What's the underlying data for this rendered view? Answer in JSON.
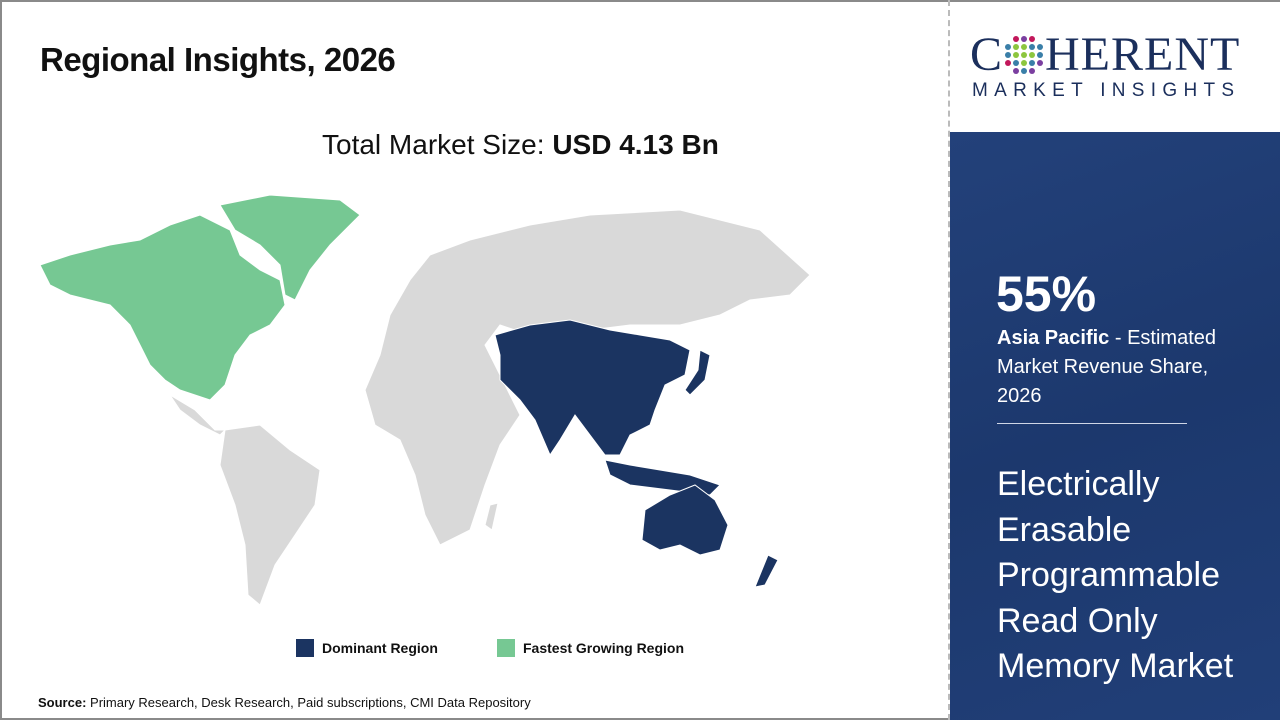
{
  "header": {
    "title": "Regional Insights, 2026",
    "total_label": "Total Market Size: ",
    "total_value": "USD 4.13 Bn"
  },
  "legend": [
    {
      "label": "Dominant Region",
      "color": "#1b3461"
    },
    {
      "label": "Fastest Growing Region",
      "color": "#76c893"
    }
  ],
  "map": {
    "land_color": "#d9d9d9",
    "dominant": "Asia Pacific",
    "fastest": "North America"
  },
  "source": {
    "label": "Source:",
    "text": " Primary Research, Desk Research, Paid subscriptions, CMI Data Repository"
  },
  "logo": {
    "main_c": "C",
    "main_rest": "HERENT",
    "sub": "MARKET INSIGHTS"
  },
  "panel": {
    "percent": "55%",
    "region": "Asia Pacific",
    "region_desc": " - Estimated Market Revenue Share, 2026",
    "market_name": "Electrically Erasable Programmable Read Only Memory Market"
  }
}
